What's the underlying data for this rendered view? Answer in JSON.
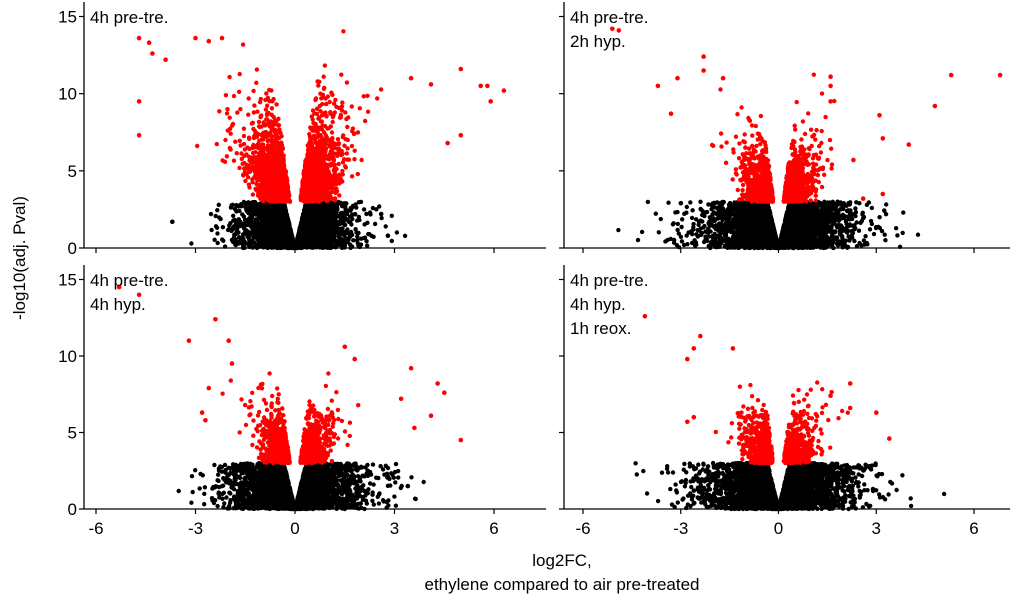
{
  "chart_data": {
    "type": "scatter",
    "layout": "2x2 facets, shared axes",
    "xlabel_line1": "log2FC,",
    "xlabel_line2": "ethylene compared to air pre-treated",
    "ylabel": "-log10(adj. Pval)",
    "xlim": [
      -6.6,
      7.0
    ],
    "ylim": [
      0,
      15.5
    ],
    "x_ticks": [
      -6,
      -3,
      0,
      3,
      6
    ],
    "x_tick_labels": [
      "-6",
      "-3",
      "0",
      "3",
      "6"
    ],
    "y_ticks": [
      0,
      5,
      10,
      15
    ],
    "y_tick_labels": [
      "0",
      "5",
      "10",
      "15"
    ],
    "significance_threshold_neglog10p": 3,
    "colors": {
      "significant": "#ff0000",
      "not_significant": "#000000"
    },
    "grid": false,
    "legend": "none",
    "panels": [
      {
        "label_lines": [
          "4h pre-tre."
        ],
        "counts": {
          "sig": 2300,
          "nonsig": 4300
        },
        "spread": {
          "sig_x": 1.05,
          "sig_y": 3.0,
          "nonsig_x": 0.55
        },
        "outliers": [
          {
            "x": -4.7,
            "y": 13.6
          },
          {
            "x": -4.4,
            "y": 13.3
          },
          {
            "x": -4.3,
            "y": 12.6
          },
          {
            "x": -3.9,
            "y": 12.2
          },
          {
            "x": -3.0,
            "y": 13.6
          },
          {
            "x": -2.6,
            "y": 13.4
          },
          {
            "x": -2.2,
            "y": 13.6
          },
          {
            "x": -4.7,
            "y": 9.5
          },
          {
            "x": -4.7,
            "y": 7.3
          },
          {
            "x": -3.7,
            "y": 1.7
          },
          {
            "x": 2.8,
            "y": 0.8
          },
          {
            "x": 2.6,
            "y": 2.2
          },
          {
            "x": 3.5,
            "y": 11.0
          },
          {
            "x": 4.1,
            "y": 10.6
          },
          {
            "x": 5.0,
            "y": 11.6
          },
          {
            "x": 5.6,
            "y": 10.5
          },
          {
            "x": 5.8,
            "y": 10.5
          },
          {
            "x": 6.3,
            "y": 10.2
          },
          {
            "x": 5.9,
            "y": 9.5
          },
          {
            "x": 5.0,
            "y": 7.3
          },
          {
            "x": 4.6,
            "y": 6.8
          }
        ]
      },
      {
        "label_lines": [
          "4h pre-tre.",
          "2h hyp."
        ],
        "counts": {
          "sig": 1500,
          "nonsig": 4300
        },
        "spread": {
          "sig_x": 0.9,
          "sig_y": 2.0,
          "nonsig_x": 0.75
        },
        "outliers": [
          {
            "x": -4.9,
            "y": 14.1
          },
          {
            "x": -5.1,
            "y": 14.2
          },
          {
            "x": -2.3,
            "y": 12.4
          },
          {
            "x": -2.3,
            "y": 11.5
          },
          {
            "x": -1.7,
            "y": 11.0
          },
          {
            "x": -3.1,
            "y": 11.0
          },
          {
            "x": -3.7,
            "y": 10.5
          },
          {
            "x": -3.3,
            "y": 8.7
          },
          {
            "x": -3.0,
            "y": 2.9
          },
          {
            "x": 1.6,
            "y": 11.1
          },
          {
            "x": 1.6,
            "y": 10.5
          },
          {
            "x": 1.6,
            "y": 9.5
          },
          {
            "x": 3.1,
            "y": 8.6
          },
          {
            "x": 3.2,
            "y": 7.1
          },
          {
            "x": 4.0,
            "y": 6.7
          },
          {
            "x": 4.8,
            "y": 9.2
          },
          {
            "x": 5.3,
            "y": 11.2
          },
          {
            "x": 6.8,
            "y": 11.2
          },
          {
            "x": 3.2,
            "y": 3.5
          },
          {
            "x": 2.6,
            "y": 3.2
          },
          {
            "x": 2.3,
            "y": 5.7
          }
        ]
      },
      {
        "label_lines": [
          "4h pre-tre.",
          "4h hyp."
        ],
        "counts": {
          "sig": 1400,
          "nonsig": 4300
        },
        "spread": {
          "sig_x": 0.85,
          "sig_y": 1.9,
          "nonsig_x": 0.65
        },
        "outliers": [
          {
            "x": -5.3,
            "y": 14.5
          },
          {
            "x": -4.7,
            "y": 14.0
          },
          {
            "x": -2.4,
            "y": 12.4
          },
          {
            "x": -3.2,
            "y": 11.0
          },
          {
            "x": -2.0,
            "y": 11.0
          },
          {
            "x": -1.9,
            "y": 9.5
          },
          {
            "x": -2.6,
            "y": 7.9
          },
          {
            "x": -2.8,
            "y": 6.3
          },
          {
            "x": -2.7,
            "y": 5.8
          },
          {
            "x": -2.5,
            "y": 0.7
          },
          {
            "x": -2.3,
            "y": 1.0
          },
          {
            "x": 1.5,
            "y": 10.6
          },
          {
            "x": 1.8,
            "y": 9.8
          },
          {
            "x": 3.5,
            "y": 9.2
          },
          {
            "x": 4.3,
            "y": 8.2
          },
          {
            "x": 4.5,
            "y": 7.6
          },
          {
            "x": 3.2,
            "y": 7.2
          },
          {
            "x": 4.1,
            "y": 6.1
          },
          {
            "x": 3.6,
            "y": 5.3
          },
          {
            "x": 5.0,
            "y": 4.5
          },
          {
            "x": 2.8,
            "y": 2.1
          },
          {
            "x": 3.4,
            "y": 1.5
          }
        ]
      },
      {
        "label_lines": [
          "4h pre-tre.",
          "4h hyp.",
          "1h reox."
        ],
        "counts": {
          "sig": 1100,
          "nonsig": 4300
        },
        "spread": {
          "sig_x": 0.9,
          "sig_y": 1.7,
          "nonsig_x": 0.75
        },
        "outliers": [
          {
            "x": -4.1,
            "y": 12.6
          },
          {
            "x": -2.4,
            "y": 11.3
          },
          {
            "x": -2.6,
            "y": 10.5
          },
          {
            "x": -1.4,
            "y": 10.5
          },
          {
            "x": -2.8,
            "y": 9.8
          },
          {
            "x": -2.6,
            "y": 6.0
          },
          {
            "x": -2.8,
            "y": 5.7
          },
          {
            "x": -2.6,
            "y": 1.2
          },
          {
            "x": -1.8,
            "y": 1.2
          },
          {
            "x": 1.6,
            "y": 7.4
          },
          {
            "x": 2.2,
            "y": 6.6
          },
          {
            "x": 2.2,
            "y": 8.2
          },
          {
            "x": 3.0,
            "y": 6.3
          },
          {
            "x": 3.4,
            "y": 4.6
          },
          {
            "x": 2.8,
            "y": 2.8
          },
          {
            "x": 2.9,
            "y": 1.3
          }
        ]
      }
    ]
  }
}
